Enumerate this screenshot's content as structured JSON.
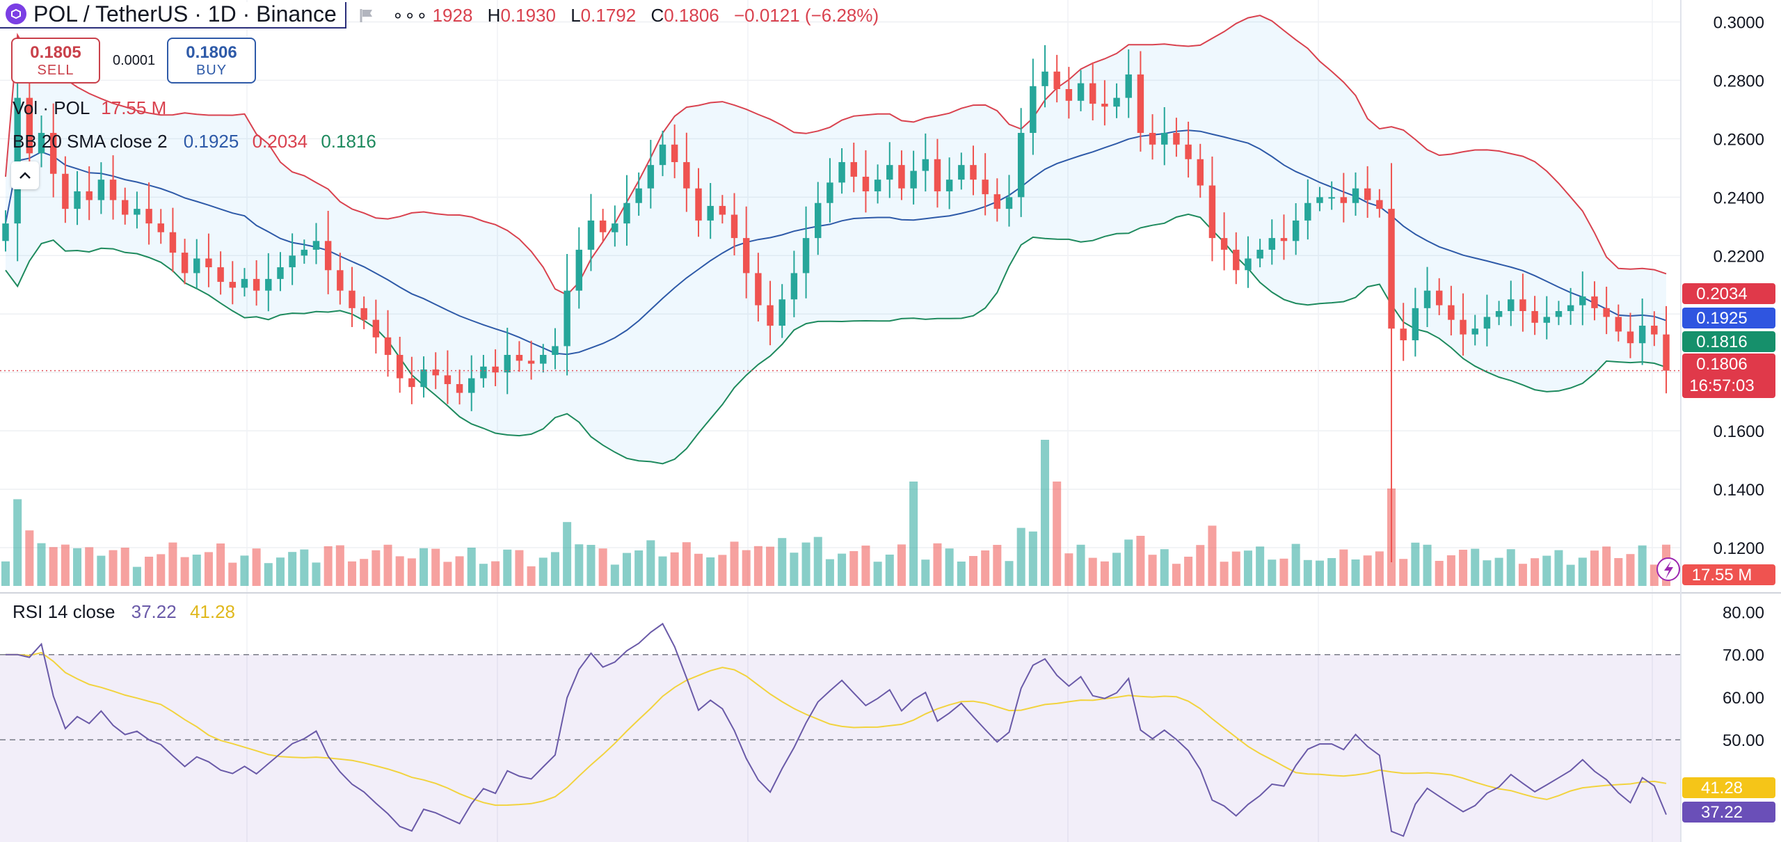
{
  "header": {
    "symbol_title": "POL / TetherUS · 1D · Binance",
    "ohlc": {
      "o_label": "",
      "o_value": "1928",
      "h_label": "H",
      "h_value": "0.1930",
      "l_label": "L",
      "l_value": "0.1792",
      "c_label": "C",
      "c_value": "0.1806",
      "change": "−0.0121 (−6.28%)"
    }
  },
  "trade": {
    "sell_price": "0.1805",
    "sell_label": "SELL",
    "spread": "0.0001",
    "buy_price": "0.1806",
    "buy_label": "BUY"
  },
  "legends": {
    "vol_name": "Vol · POL",
    "vol_value": "17.55 M",
    "bb_name": "BB 20 SMA close 2",
    "bb_basis": "0.1925",
    "bb_upper": "0.2034",
    "bb_lower": "0.1816",
    "rsi_name": "RSI 14 close",
    "rsi_value": "37.22",
    "rsi_ma": "41.28"
  },
  "colors": {
    "up": "#26a69a",
    "down": "#ef5350",
    "bb_upper": "#d9424f",
    "bb_basis": "#2e5aa8",
    "bb_lower": "#1e8a5e",
    "rsi": "#6a5aa8",
    "rsi_ma": "#f2d33e"
  },
  "icons": {
    "symbol": "polygon-logo-icon",
    "flag": "flag-icon",
    "more": "more-icon",
    "collapse": "chevron-up-icon",
    "lightning": "lightning-icon"
  },
  "chart_data": {
    "type": "candlestick",
    "price_axis": {
      "ticks": [
        "0.3000",
        "0.2800",
        "0.2600",
        "0.2400",
        "0.2200",
        "0.1600",
        "0.1400",
        "0.1200"
      ],
      "range": [
        0.105,
        0.3075
      ]
    },
    "price_labels": {
      "bb_upper": "0.2034",
      "bb_basis": "0.1925",
      "bb_lower": "0.1816",
      "last_price": "0.1806",
      "countdown": "16:57:03",
      "volume": "17.55 M"
    },
    "current_price": 0.1806,
    "rsi_axis": {
      "ticks": [
        "80.00",
        "70.00",
        "60.00",
        "50.00"
      ],
      "bands": [
        70,
        50
      ],
      "range": [
        26,
        84
      ]
    },
    "rsi_labels": {
      "ma": "41.28",
      "rsi": "37.22"
    },
    "closes": [
      0.231,
      0.274,
      0.255,
      0.262,
      0.248,
      0.236,
      0.242,
      0.239,
      0.246,
      0.239,
      0.234,
      0.236,
      0.231,
      0.228,
      0.221,
      0.214,
      0.219,
      0.216,
      0.211,
      0.209,
      0.212,
      0.208,
      0.212,
      0.216,
      0.22,
      0.222,
      0.225,
      0.215,
      0.208,
      0.202,
      0.198,
      0.192,
      0.186,
      0.178,
      0.175,
      0.181,
      0.179,
      0.176,
      0.173,
      0.178,
      0.182,
      0.18,
      0.186,
      0.184,
      0.183,
      0.186,
      0.189,
      0.208,
      0.222,
      0.232,
      0.228,
      0.231,
      0.238,
      0.243,
      0.251,
      0.258,
      0.252,
      0.243,
      0.232,
      0.237,
      0.234,
      0.226,
      0.214,
      0.203,
      0.196,
      0.205,
      0.214,
      0.226,
      0.238,
      0.245,
      0.252,
      0.247,
      0.242,
      0.246,
      0.251,
      0.243,
      0.249,
      0.253,
      0.242,
      0.246,
      0.251,
      0.246,
      0.241,
      0.236,
      0.24,
      0.262,
      0.278,
      0.283,
      0.277,
      0.273,
      0.279,
      0.272,
      0.271,
      0.274,
      0.282,
      0.262,
      0.258,
      0.262,
      0.258,
      0.253,
      0.244,
      0.226,
      0.222,
      0.215,
      0.219,
      0.222,
      0.226,
      0.225,
      0.232,
      0.238,
      0.24,
      0.24,
      0.238,
      0.243,
      0.239,
      0.236,
      0.195,
      0.191,
      0.202,
      0.208,
      0.203,
      0.198,
      0.193,
      0.195,
      0.199,
      0.201,
      0.205,
      0.201,
      0.197,
      0.199,
      0.201,
      0.203,
      0.206,
      0.202,
      0.199,
      0.194,
      0.19,
      0.196,
      0.193,
      0.1806
    ],
    "volume_ranges": "relative"
  }
}
